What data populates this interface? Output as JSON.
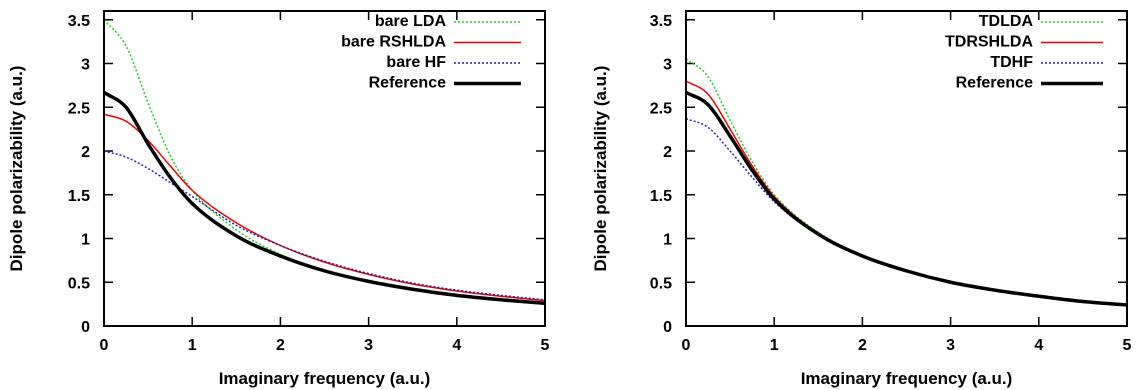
{
  "chart_data": [
    {
      "type": "line",
      "title": "",
      "xlabel": "Imaginary frequency (a.u.)",
      "ylabel": "Dipole polarizability (a.u.)",
      "xlim": [
        0,
        5
      ],
      "ylim": [
        0,
        3.6
      ],
      "xticks": [
        "0",
        "1",
        "2",
        "3",
        "4",
        "5"
      ],
      "yticks": [
        "0",
        "0.5",
        "1",
        "1.5",
        "2",
        "2.5",
        "3",
        "3.5"
      ],
      "grid": false,
      "legend_position": "top-right",
      "x": [
        0,
        0.25,
        0.5,
        0.75,
        1,
        1.5,
        2,
        2.5,
        3,
        3.5,
        4,
        4.5,
        5
      ],
      "series": [
        {
          "name": "bare LDA",
          "color": "#22cc22",
          "dash": "dotted",
          "width": 1.5,
          "values": [
            3.5,
            3.2,
            2.55,
            1.95,
            1.55,
            1.1,
            0.82,
            0.63,
            0.5,
            0.41,
            0.34,
            0.29,
            0.25
          ]
        },
        {
          "name": "bare RSHLDA",
          "color": "#ee0000",
          "dash": "solid",
          "width": 1.5,
          "values": [
            2.42,
            2.34,
            2.12,
            1.83,
            1.55,
            1.18,
            0.92,
            0.73,
            0.59,
            0.48,
            0.4,
            0.34,
            0.29
          ]
        },
        {
          "name": "bare HF",
          "color": "#2222aa",
          "dash": "dotted",
          "width": 1.5,
          "values": [
            2.0,
            1.93,
            1.8,
            1.64,
            1.48,
            1.15,
            0.92,
            0.74,
            0.6,
            0.49,
            0.41,
            0.35,
            0.3
          ]
        },
        {
          "name": "Reference",
          "color": "#000000",
          "dash": "solid",
          "width": 3.5,
          "values": [
            2.67,
            2.5,
            2.08,
            1.7,
            1.4,
            1.03,
            0.8,
            0.63,
            0.51,
            0.42,
            0.35,
            0.3,
            0.26
          ]
        }
      ]
    },
    {
      "type": "line",
      "title": "",
      "xlabel": "Imaginary frequency (a.u.)",
      "ylabel": "Dipole polarizability (a.u.)",
      "xlim": [
        0,
        5
      ],
      "ylim": [
        0,
        3.6
      ],
      "xticks": [
        "0",
        "1",
        "2",
        "3",
        "4",
        "5"
      ],
      "yticks": [
        "0",
        "0.5",
        "1",
        "1.5",
        "2",
        "2.5",
        "3",
        "3.5"
      ],
      "grid": false,
      "legend_position": "top-right",
      "x": [
        0,
        0.25,
        0.5,
        0.75,
        1,
        1.5,
        2,
        2.5,
        3,
        3.5,
        4,
        4.5,
        5
      ],
      "series": [
        {
          "name": "TDLDA",
          "color": "#22cc22",
          "dash": "dotted",
          "width": 1.5,
          "values": [
            3.05,
            2.85,
            2.35,
            1.88,
            1.5,
            1.07,
            0.81,
            0.63,
            0.5,
            0.41,
            0.34,
            0.28,
            0.24
          ]
        },
        {
          "name": "TDRSHLDA",
          "color": "#ee0000",
          "dash": "solid",
          "width": 1.5,
          "values": [
            2.8,
            2.65,
            2.25,
            1.83,
            1.48,
            1.06,
            0.8,
            0.63,
            0.5,
            0.41,
            0.34,
            0.28,
            0.24
          ]
        },
        {
          "name": "TDHF",
          "color": "#2222aa",
          "dash": "dotted",
          "width": 1.5,
          "values": [
            2.37,
            2.27,
            2.0,
            1.7,
            1.42,
            1.04,
            0.79,
            0.62,
            0.5,
            0.41,
            0.34,
            0.28,
            0.24
          ]
        },
        {
          "name": "Reference",
          "color": "#000000",
          "dash": "solid",
          "width": 3.5,
          "values": [
            2.67,
            2.53,
            2.17,
            1.78,
            1.45,
            1.05,
            0.8,
            0.63,
            0.5,
            0.41,
            0.34,
            0.28,
            0.24
          ]
        }
      ]
    }
  ]
}
